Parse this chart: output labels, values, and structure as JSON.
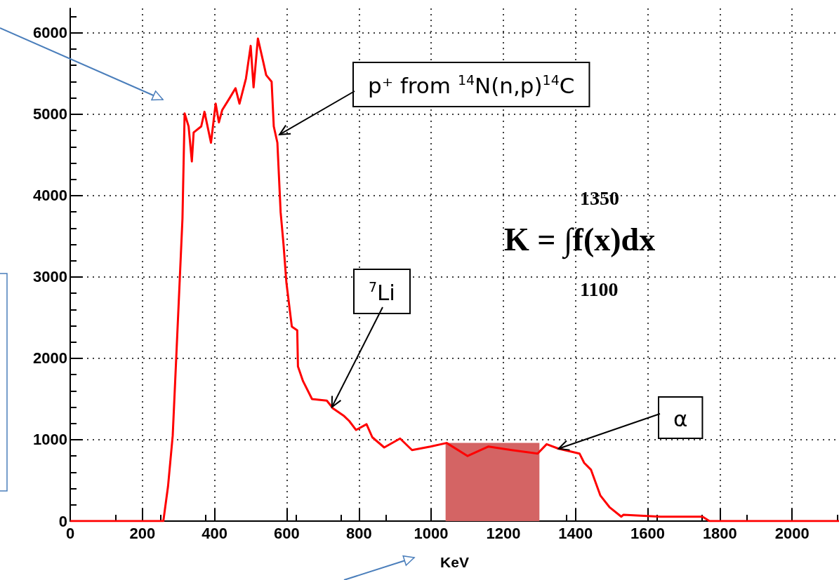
{
  "chart_data": {
    "type": "line",
    "xlabel": "KeV",
    "color": "#ff0000",
    "x": [
      0,
      258,
      271,
      284,
      294,
      302,
      311,
      317,
      328,
      337,
      342,
      363,
      372,
      390,
      403,
      412,
      421,
      442,
      458,
      469,
      487,
      500,
      508,
      520,
      535,
      543,
      558,
      564,
      574,
      583,
      591,
      599,
      614,
      629,
      631,
      645,
      670,
      711,
      728,
      759,
      773,
      792,
      821,
      837,
      870,
      914,
      947,
      998,
      1043,
      1101,
      1159,
      1223,
      1295,
      1320,
      1353,
      1411,
      1424,
      1443,
      1469,
      1494,
      1527,
      1533,
      1636,
      1752,
      1771,
      2130
    ],
    "values": [
      0,
      0,
      426,
      1050,
      2030,
      2820,
      3715,
      5010,
      4850,
      4420,
      4775,
      4850,
      5030,
      4650,
      5130,
      4900,
      5050,
      5200,
      5320,
      5130,
      5440,
      5840,
      5330,
      5930,
      5640,
      5480,
      5400,
      4850,
      4650,
      3795,
      3400,
      2930,
      2390,
      2345,
      1900,
      1720,
      1500,
      1480,
      1385,
      1290,
      1230,
      1120,
      1190,
      1030,
      905,
      1015,
      873,
      916,
      960,
      800,
      916,
      873,
      830,
      945,
      890,
      830,
      715,
      630,
      313,
      172,
      54,
      78,
      54,
      54,
      0,
      0
    ],
    "series": [
      {
        "type": "area",
        "color": "#d46464",
        "x": [
          1040,
          1300
        ],
        "values": [
          960,
          960
        ]
      }
    ],
    "xlim": [
      0,
      2130
    ],
    "xticks": [
      0,
      200,
      400,
      600,
      800,
      1000,
      1200,
      1400,
      1600,
      1800,
      2000
    ],
    "ylim": [
      0,
      6300
    ],
    "yticks": [
      0,
      1000,
      2000,
      3000,
      4000,
      5000,
      6000
    ],
    "grid": true,
    "marker": "none",
    "line_style": "solid",
    "annotations": [
      {
        "text": "p⁺ from $^{14}$N(n,p)$^{14}$C",
        "x": 580,
        "y": 4750
      },
      {
        "text": "$^{7}$Li",
        "x": 725,
        "y": 1400
      },
      {
        "text": "α",
        "x": 1353,
        "y": 890
      },
      "K = ∫f(x)dx",
      "1350",
      "1100"
    ]
  }
}
